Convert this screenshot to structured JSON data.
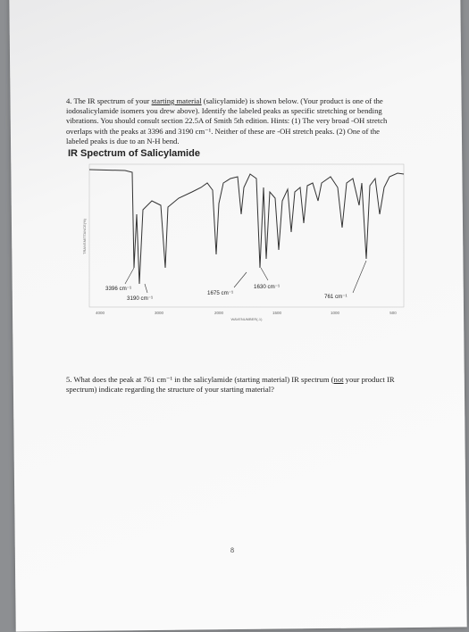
{
  "question_4": {
    "parts": [
      {
        "text": "4. The IR spectrum of your "
      },
      {
        "text": "starting material",
        "underline": true
      },
      {
        "text": " (salicylamide) is shown below. (Your product is one of the iodosalicylamide isomers you drew above). Identify the labeled peaks as specific stretching or bending vibrations. You should consult section 22.5A of Smith 5th edition. Hints: (1) The very broad -OH stretch overlaps with the peaks at 3396 and 3190 cm⁻¹. Neither of these are -OH stretch peaks. (2) One of the labeled peaks is due to an N-H bend."
      }
    ]
  },
  "figure": {
    "title": "IR Spectrum of Salicylamide",
    "y_axis_label": "TRANSMITTANCE(%)",
    "x_axis_label": "WAVENUMBER(-1)",
    "x_ticks": [
      "4000",
      "3000",
      "2000",
      "1500",
      "1000",
      "500"
    ],
    "peak_labels": [
      "3396 cm⁻¹",
      "3190 cm⁻¹",
      "1675 cm⁻¹",
      "1630 cm⁻¹",
      "761 cm⁻¹"
    ]
  },
  "question_5": {
    "parts": [
      {
        "text": "5. What does the peak at 761 cm⁻¹ in the salicylamide (starting material) IR spectrum ("
      },
      {
        "text": "not",
        "underline": true
      },
      {
        "text": " your product IR spectrum) indicate regarding the structure of your starting material?"
      }
    ]
  },
  "page_number": "8"
}
